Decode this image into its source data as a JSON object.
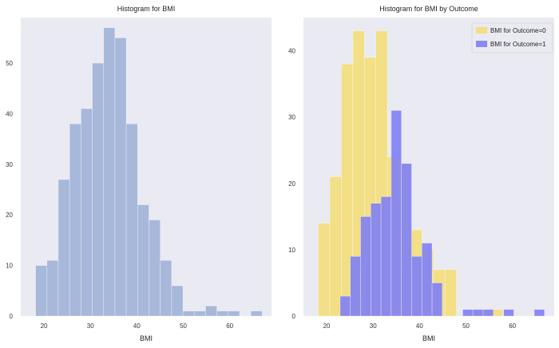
{
  "chart_data": [
    {
      "type": "bar",
      "title": "Histogram for BMI",
      "xlabel": "BMI",
      "ylabel": "",
      "xlim": [
        15,
        69
      ],
      "ylim": [
        0,
        59
      ],
      "xticks": [
        20,
        30,
        40,
        50,
        60
      ],
      "yticks": [
        0,
        10,
        20,
        30,
        40,
        50
      ],
      "grid": false,
      "colors": {
        "bar": "#a3b5d9",
        "background": "#eaeaf2"
      },
      "series": [
        {
          "bin_width": 2.44,
          "bins": [
            {
              "x0": 18.2,
              "count": 10
            },
            {
              "x0": 20.64,
              "count": 11
            },
            {
              "x0": 23.08,
              "count": 27
            },
            {
              "x0": 25.52,
              "count": 38
            },
            {
              "x0": 27.96,
              "count": 41
            },
            {
              "x0": 30.4,
              "count": 50
            },
            {
              "x0": 32.84,
              "count": 57
            },
            {
              "x0": 35.28,
              "count": 55
            },
            {
              "x0": 37.72,
              "count": 38
            },
            {
              "x0": 40.16,
              "count": 22
            },
            {
              "x0": 42.6,
              "count": 19
            },
            {
              "x0": 45.04,
              "count": 11
            },
            {
              "x0": 47.48,
              "count": 6
            },
            {
              "x0": 49.92,
              "count": 1
            },
            {
              "x0": 52.36,
              "count": 1
            },
            {
              "x0": 54.8,
              "count": 2
            },
            {
              "x0": 57.24,
              "count": 1
            },
            {
              "x0": 59.68,
              "count": 1
            },
            {
              "x0": 62.12,
              "count": 0
            },
            {
              "x0": 64.56,
              "count": 1
            }
          ]
        }
      ]
    },
    {
      "type": "bar",
      "title": "Histogram for BMI by Outcome",
      "xlabel": "BMI",
      "ylabel": "",
      "xlim": [
        15,
        69
      ],
      "ylim": [
        0,
        45
      ],
      "xticks": [
        20,
        30,
        40,
        50,
        60
      ],
      "yticks": [
        0,
        10,
        20,
        30,
        40
      ],
      "grid": false,
      "legend": "top-right",
      "colors": {
        "background": "#eaeaf2"
      },
      "series": [
        {
          "name": "BMI for Outcome=0",
          "color": "#f3dd73",
          "bin_width": 2.48,
          "bins": [
            {
              "x0": 18.2,
              "count": 14
            },
            {
              "x0": 20.68,
              "count": 21
            },
            {
              "x0": 23.16,
              "count": 38
            },
            {
              "x0": 25.64,
              "count": 43
            },
            {
              "x0": 28.12,
              "count": 39
            },
            {
              "x0": 30.6,
              "count": 43
            },
            {
              "x0": 33.08,
              "count": 24
            },
            {
              "x0": 35.56,
              "count": 23
            },
            {
              "x0": 38.04,
              "count": 13
            },
            {
              "x0": 40.52,
              "count": 10
            },
            {
              "x0": 43.0,
              "count": 7
            },
            {
              "x0": 45.48,
              "count": 7
            },
            {
              "x0": 47.96,
              "count": 0
            },
            {
              "x0": 50.44,
              "count": 1
            },
            {
              "x0": 52.92,
              "count": 1
            },
            {
              "x0": 55.4,
              "count": 1
            }
          ]
        },
        {
          "name": "BMI for Outcome=1",
          "color": "#7f7ff4",
          "bin_width": 2.2,
          "bins": [
            {
              "x0": 22.9,
              "count": 3
            },
            {
              "x0": 25.1,
              "count": 9
            },
            {
              "x0": 27.3,
              "count": 15
            },
            {
              "x0": 29.5,
              "count": 17
            },
            {
              "x0": 31.7,
              "count": 18
            },
            {
              "x0": 33.9,
              "count": 31
            },
            {
              "x0": 36.1,
              "count": 23
            },
            {
              "x0": 38.3,
              "count": 9
            },
            {
              "x0": 40.5,
              "count": 11
            },
            {
              "x0": 42.7,
              "count": 5
            },
            {
              "x0": 44.9,
              "count": 0
            },
            {
              "x0": 47.1,
              "count": 0
            },
            {
              "x0": 49.3,
              "count": 1
            },
            {
              "x0": 51.5,
              "count": 1
            },
            {
              "x0": 53.7,
              "count": 1
            },
            {
              "x0": 55.9,
              "count": 0
            },
            {
              "x0": 58.1,
              "count": 1
            },
            {
              "x0": 60.3,
              "count": 0
            },
            {
              "x0": 62.5,
              "count": 0
            },
            {
              "x0": 64.7,
              "count": 1
            }
          ]
        }
      ]
    }
  ]
}
